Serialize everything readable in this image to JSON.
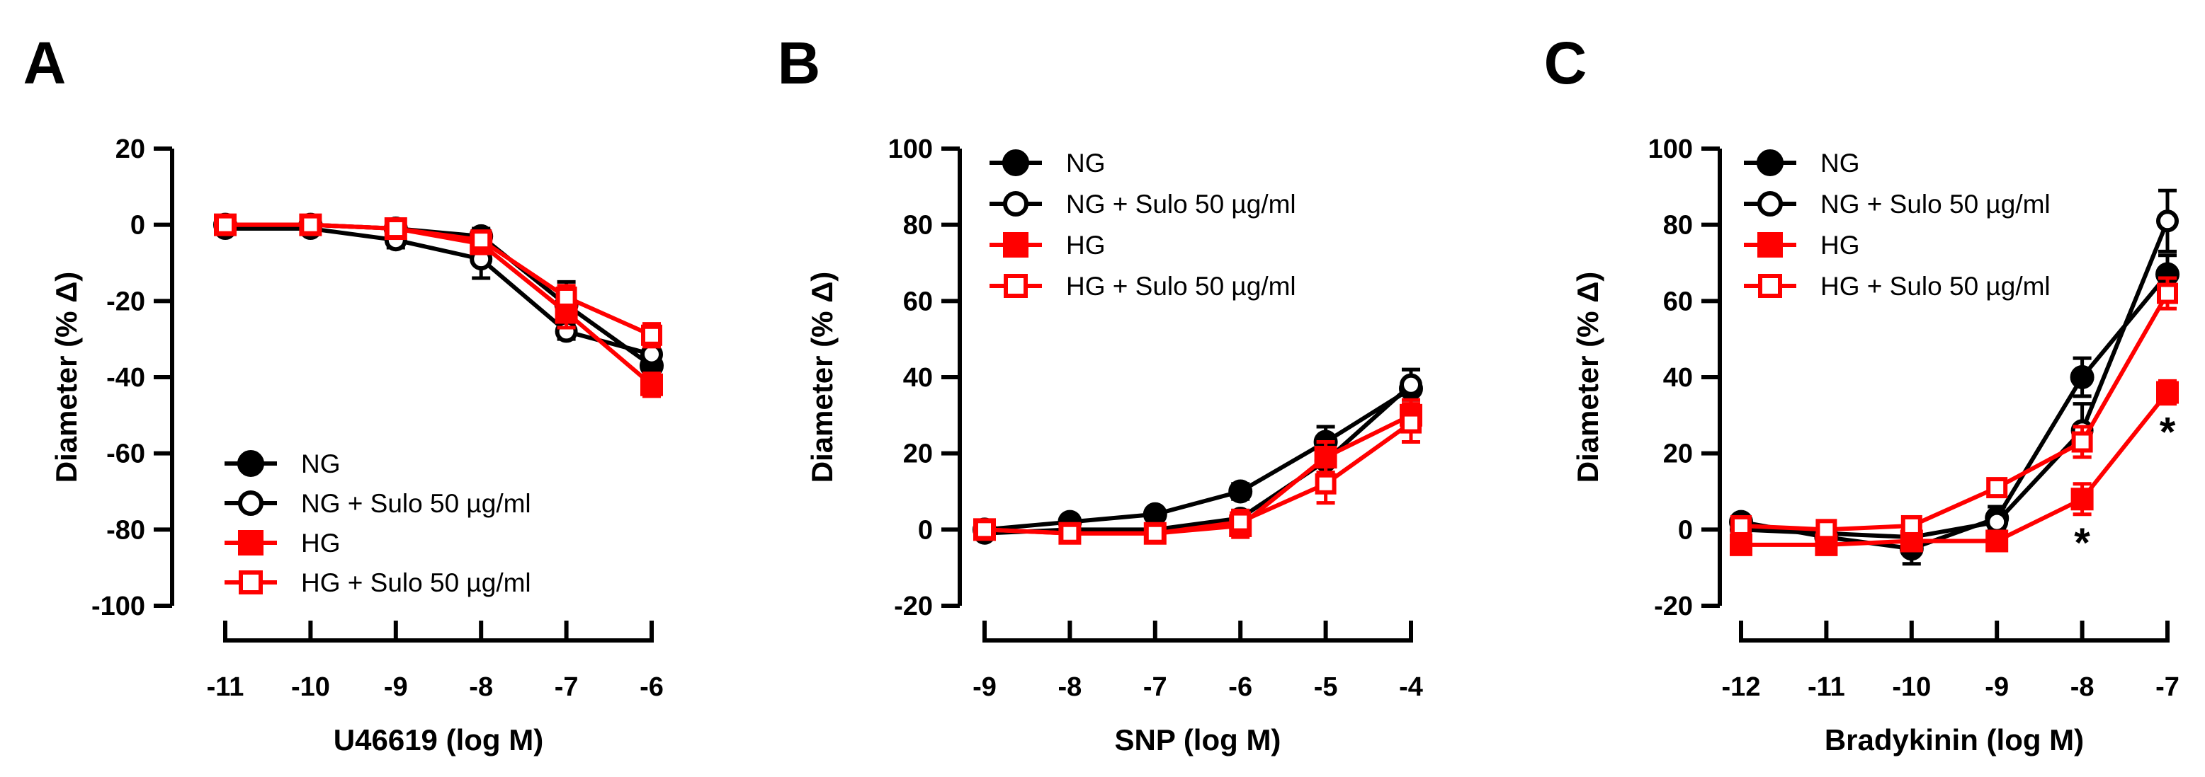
{
  "figure": {
    "charts": [
      {
        "letter": "A",
        "xlabel": "U46619 (log M)",
        "ylabel": "Diameter (% Δ)",
        "x_ticks": [
          -11,
          -10,
          -9,
          -8,
          -7,
          -6
        ],
        "x_tick_labels": [
          "-11",
          "-10",
          "-9",
          "-8",
          "-7",
          "-6"
        ],
        "y_ticks": [
          20,
          0,
          -20,
          -40,
          -60,
          -80,
          -100
        ],
        "y_tick_labels": [
          "20",
          "0",
          "-20",
          "-40",
          "-60",
          "-80",
          "-100"
        ],
        "legend_position": "bottom-left"
      },
      {
        "letter": "B",
        "xlabel": "SNP (log M)",
        "ylabel": "Diameter (% Δ)",
        "x_ticks": [
          -9,
          -8,
          -7,
          -6,
          -5,
          -4
        ],
        "x_tick_labels": [
          "-9",
          "-8",
          "-7",
          "-6",
          "-5",
          "-4"
        ],
        "y_ticks": [
          100,
          80,
          60,
          40,
          20,
          0,
          -20
        ],
        "y_tick_labels": [
          "100",
          "80",
          "60",
          "40",
          "20",
          "0",
          "-20"
        ],
        "legend_position": "top-left"
      },
      {
        "letter": "C",
        "xlabel": "Bradykinin (log M)",
        "ylabel": "Diameter (% Δ)",
        "x_ticks": [
          -12,
          -11,
          -10,
          -9,
          -8,
          -7
        ],
        "x_tick_labels": [
          "-12",
          "-11",
          "-10",
          "-9",
          "-8",
          "-7"
        ],
        "y_ticks": [
          100,
          80,
          60,
          40,
          20,
          0,
          -20
        ],
        "y_tick_labels": [
          "100",
          "80",
          "60",
          "40",
          "20",
          "0",
          "-20"
        ],
        "legend_position": "top-left"
      }
    ]
  },
  "chart_data": [
    {
      "type": "line",
      "title": "A",
      "xlabel": "U46619 (log M)",
      "ylabel": "Diameter (% Δ)",
      "xlim": [
        -11,
        -6
      ],
      "ylim": [
        -100,
        20
      ],
      "x": [
        -11,
        -10,
        -9,
        -8,
        -7,
        -6
      ],
      "series": [
        {
          "name": "NG",
          "color": "#000000",
          "marker": "filled-circle",
          "values": [
            0,
            0,
            -1,
            -3,
            -21,
            -37
          ],
          "errors": [
            1,
            1,
            1,
            2,
            6,
            4
          ]
        },
        {
          "name": "NG + Sulo 50 µg/ml",
          "color": "#000000",
          "marker": "open-circle",
          "values": [
            -1,
            -1,
            -4,
            -9,
            -28,
            -34
          ],
          "errors": [
            1,
            1,
            2,
            5,
            2,
            3
          ]
        },
        {
          "name": "HG",
          "color": "#ff0000",
          "marker": "filled-square",
          "values": [
            0,
            0,
            -1,
            -5,
            -23,
            -42
          ],
          "errors": [
            1,
            1,
            1,
            2,
            4,
            3
          ]
        },
        {
          "name": "HG + Sulo 50 µg/ml",
          "color": "#ff0000",
          "marker": "open-square",
          "values": [
            0,
            0,
            -1,
            -4,
            -19,
            -29
          ],
          "errors": [
            1,
            1,
            1,
            2,
            3,
            3
          ]
        }
      ],
      "annotations": []
    },
    {
      "type": "line",
      "title": "B",
      "xlabel": "SNP (log M)",
      "ylabel": "Diameter (% Δ)",
      "xlim": [
        -9,
        -4
      ],
      "ylim": [
        -20,
        100
      ],
      "x": [
        -9,
        -8,
        -7,
        -6,
        -5,
        -4
      ],
      "series": [
        {
          "name": "NG",
          "color": "#000000",
          "marker": "filled-circle",
          "values": [
            0,
            2,
            4,
            10,
            23,
            37
          ],
          "errors": [
            1,
            1,
            1,
            2,
            4,
            5
          ]
        },
        {
          "name": "NG + Sulo 50 µg/ml",
          "color": "#000000",
          "marker": "open-circle",
          "values": [
            -1,
            0,
            0,
            3,
            18,
            38
          ],
          "errors": [
            1,
            1,
            1,
            2,
            3,
            4
          ]
        },
        {
          "name": "HG",
          "color": "#ff0000",
          "marker": "filled-square",
          "values": [
            0,
            -1,
            -1,
            1,
            19,
            30
          ],
          "errors": [
            1,
            1,
            1,
            3,
            4,
            4
          ]
        },
        {
          "name": "HG + Sulo 50 µg/ml",
          "color": "#ff0000",
          "marker": "open-square",
          "values": [
            0,
            -1,
            -1,
            2,
            12,
            28
          ],
          "errors": [
            1,
            1,
            1,
            3,
            5,
            5
          ]
        }
      ],
      "annotations": []
    },
    {
      "type": "line",
      "title": "C",
      "xlabel": "Bradykinin (log M)",
      "ylabel": "Diameter (% Δ)",
      "xlim": [
        -12,
        -7
      ],
      "ylim": [
        -20,
        100
      ],
      "x": [
        -12,
        -11,
        -10,
        -9,
        -8,
        -7
      ],
      "series": [
        {
          "name": "NG",
          "color": "#000000",
          "marker": "filled-circle",
          "values": [
            2,
            -2,
            -5,
            3,
            40,
            67
          ],
          "errors": [
            1,
            2,
            4,
            3,
            5,
            5
          ]
        },
        {
          "name": "NG + Sulo 50 µg/ml",
          "color": "#000000",
          "marker": "open-circle",
          "values": [
            0,
            -1,
            -2,
            2,
            26,
            81
          ],
          "errors": [
            1,
            1,
            3,
            2,
            7,
            8
          ]
        },
        {
          "name": "HG",
          "color": "#ff0000",
          "marker": "filled-square",
          "values": [
            -4,
            -4,
            -3,
            -3,
            8,
            36
          ],
          "errors": [
            2,
            2,
            2,
            2,
            4,
            3
          ]
        },
        {
          "name": "HG + Sulo 50 µg/ml",
          "color": "#ff0000",
          "marker": "open-square",
          "values": [
            1,
            0,
            1,
            11,
            23,
            62
          ],
          "errors": [
            1,
            1,
            1,
            2,
            4,
            4
          ]
        }
      ],
      "annotations": [
        {
          "text": "*",
          "x": -8,
          "series": "HG"
        },
        {
          "text": "*",
          "x": -7,
          "series": "HG"
        }
      ]
    }
  ]
}
